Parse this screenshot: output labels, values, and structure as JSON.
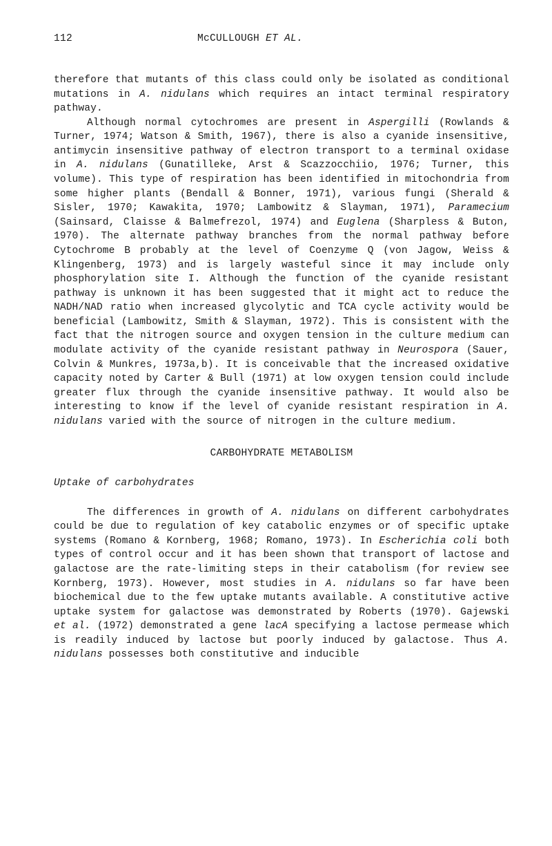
{
  "header": {
    "page_number": "112",
    "running_head_plain": "McCULLOUGH ",
    "running_head_ital": "ET AL."
  },
  "paragraphs": {
    "p1_a": "therefore  that mutants of this class could only be isolated as conditional mutations in ",
    "p1_i1": "A. nidulans",
    "p1_b": " which requires an intact terminal respiratory pathway.",
    "p2_a": "Although normal cytochromes are present in ",
    "p2_i1": "Aspergilli",
    "p2_b": " (Rowlands & Turner, 1974; Watson & Smith, 1967), there is also a cyanide insensitive, antimycin insensitive pathway of electron transport to a terminal oxidase in ",
    "p2_i2": "A. nidulans",
    "p2_c": " (Gunatilleke, Arst & Scazzocchiio, 1976; Turner, this volume).  This type of respiration has been identified in mitochondria from some higher plants (Bendall & Bonner, 1971), various fungi (Sherald & Sisler, 1970; Kawakita, 1970; Lambowitz & Slayman, 1971), ",
    "p2_i3": "Paramecium",
    "p2_d": " (Sainsard, Claisse & Balmefrezol, 1974) and ",
    "p2_i4": "Euglena",
    "p2_e": " (Sharpless & Buton, 1970).  The alternate  pathway branches from the normal pathway before Cytochrome B probably at the level of Coenzyme Q (von Jagow, Weiss & Klingenberg, 1973) and is largely wasteful since it may include only phosphorylation site I.  Although the function of the cyanide resistant pathway is unknown it has been suggested that it might act to reduce the NADH/NAD ratio when increased glycolytic and TCA cycle activity would be beneficial (Lambowitz, Smith & Slayman, 1972).  This is consistent with the fact that the nitrogen source and oxygen tension in the culture medium can modulate activity of the cyanide resistant pathway in ",
    "p2_i5": "Neurospora",
    "p2_f": " (Sauer, Colvin & Munkres, 1973a,b). It is conceivable that the increased oxidative capacity noted by Carter & Bull (1971) at low oxygen tension could include greater flux through the cyanide insensitive pathway.  It would also be interesting to know if the level of cyanide resistant respiration in ",
    "p2_i6": "A. nidulans",
    "p2_g": " varied with the source of nitrogen in the culture medium."
  },
  "section_head": "CARBOHYDRATE METABOLISM",
  "subhead": "Uptake of carbohydrates",
  "p3": {
    "a": "The differences in growth of ",
    "i1": "A. nidulans",
    "b": " on different carbohydrates could be due to regulation of key catabolic enzymes or of specific uptake systems (Romano & Kornberg, 1968; Romano, 1973).  In ",
    "i2": "Escherichia coli",
    "c": " both types of control occur and it has been shown that transport of lactose and galactose are the rate-limiting steps in their catabolism (for review see Kornberg, 1973).  However, most studies in ",
    "i3": "A. nidulans",
    "d": " so far have been biochemical due to the few uptake mutants available.  A constitutive active uptake system for galactose was demonstrated by Roberts (1970).  Gajewski ",
    "i4": "et al.",
    "e": " (1972) demonstrated a gene ",
    "i5": "lacA",
    "f": " specifying a lactose permease which is readily induced by lactose but poorly induced by galactose. Thus ",
    "i6": "A. nidulans",
    "g": " possesses both constitutive and inducible"
  }
}
